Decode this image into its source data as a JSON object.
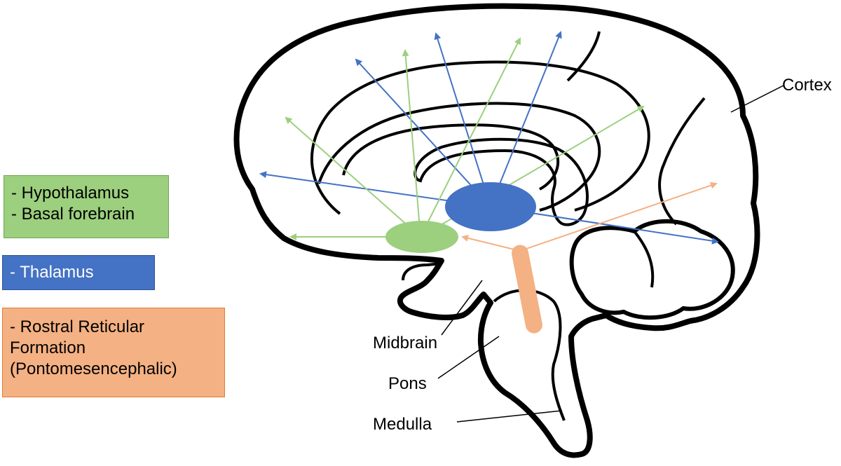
{
  "colors": {
    "hypothalamus": "#9ccf7e",
    "thalamus": "#4472c4",
    "reticular": "#f4b183",
    "outline": "#000000"
  },
  "legend": {
    "green": {
      "lines": [
        "- Hypothalamus",
        "- Basal forebrain"
      ]
    },
    "blue": {
      "lines": [
        "- Thalamus"
      ]
    },
    "orange": {
      "lines": [
        "- Rostral Reticular",
        "Formation",
        "(Pontomesencephalic)"
      ]
    }
  },
  "labels": {
    "cortex": "Cortex",
    "midbrain": "Midbrain",
    "pons": "Pons",
    "medulla": "Medulla"
  }
}
